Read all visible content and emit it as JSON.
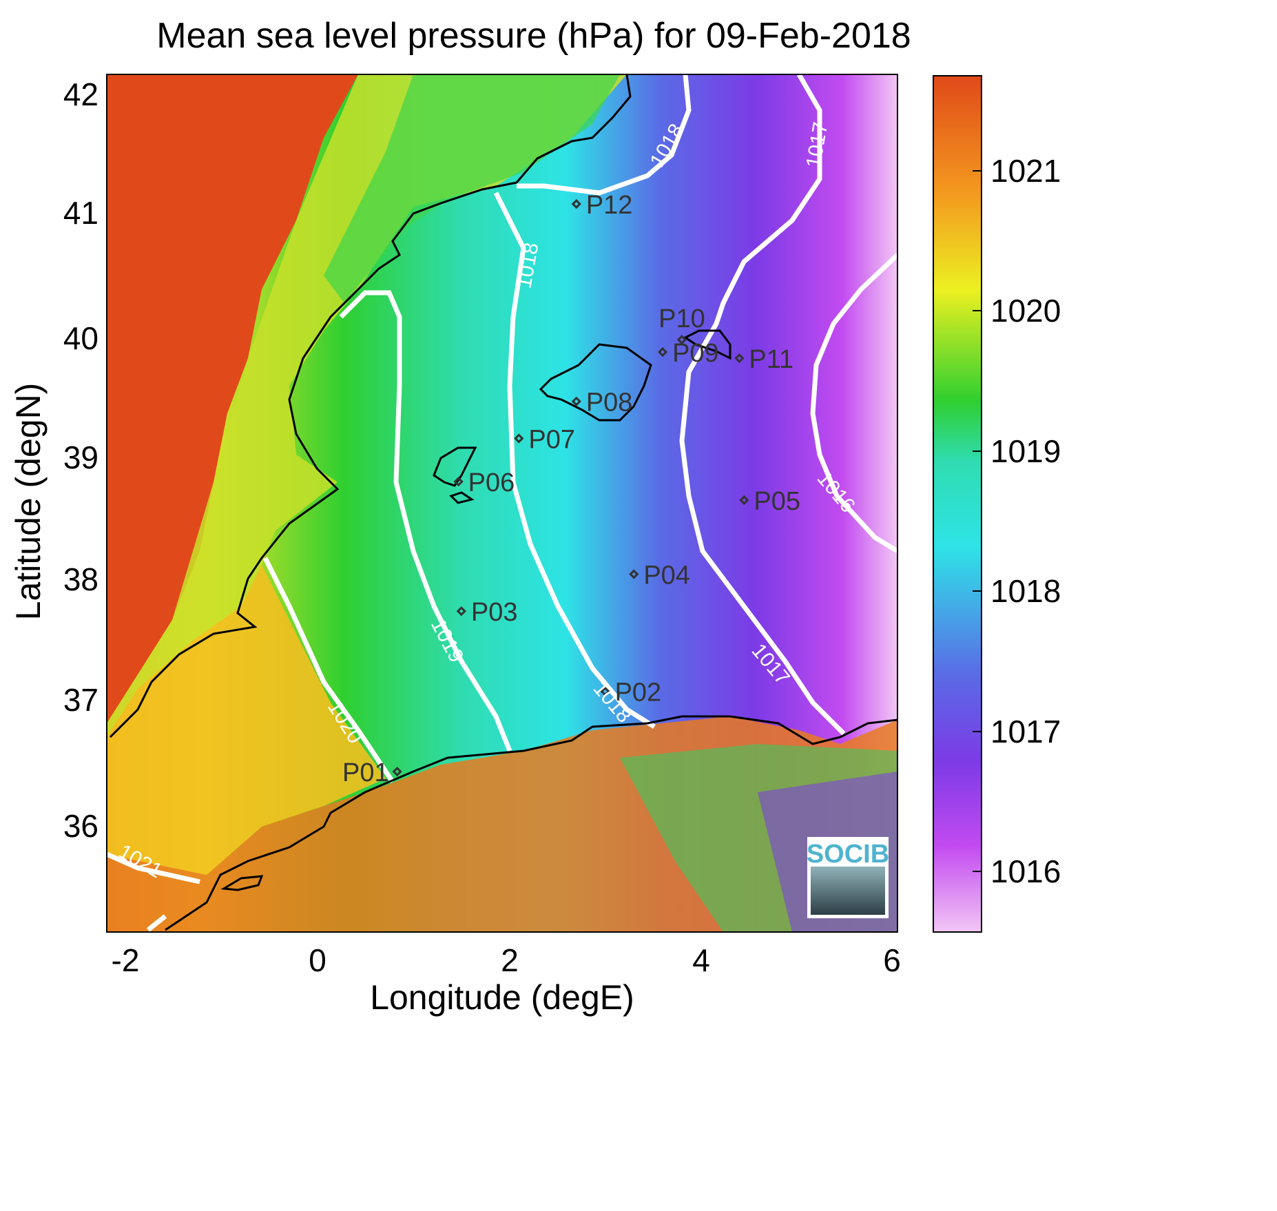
{
  "title": "Mean sea level pressure (hPa) for 09-Feb-2018",
  "xlabel": "Longitude (degE)",
  "ylabel": "Latitude (degN)",
  "xticks": [
    "-2",
    "0",
    "2",
    "4",
    "6"
  ],
  "yticks": [
    "42",
    "41",
    "40",
    "39",
    "38",
    "37",
    "36"
  ],
  "colorbar_ticks": [
    "1021",
    "1020",
    "1019",
    "1018",
    "1017",
    "1016"
  ],
  "contour_labels": [
    "1018",
    "1017",
    "1018",
    "1019",
    "1020",
    "1018",
    "1017",
    "1016",
    "1021"
  ],
  "logo": "SOCIB",
  "colors": {
    "high": "#e04a1a",
    "orange": "#f39b1f",
    "yellow": "#ecf021",
    "green": "#2fcf30",
    "cyan": "#2ee3e6",
    "blue": "#5a6be6",
    "purple": "#7c3be6",
    "magenta": "#c24bf0",
    "lowest": "#f2c6f5",
    "coast": "#000000",
    "contour": "#ffffff"
  },
  "chart_data": {
    "type": "heatmap",
    "variable": "Mean sea level pressure",
    "units": "hPa",
    "date": "09-Feb-2018",
    "xlim": [
      -2.2,
      6.05
    ],
    "ylim": [
      35.2,
      42.15
    ],
    "clim": [
      1015.6,
      1021.6
    ],
    "contour_levels": [
      1016,
      1017,
      1018,
      1019,
      1020,
      1021
    ],
    "stations": [
      {
        "name": "P01",
        "lon": 0.83,
        "lat": 36.5
      },
      {
        "name": "P02",
        "lon": 3.0,
        "lat": 37.15
      },
      {
        "name": "P03",
        "lon": 1.5,
        "lat": 37.8
      },
      {
        "name": "P04",
        "lon": 3.3,
        "lat": 38.1
      },
      {
        "name": "P05",
        "lon": 4.45,
        "lat": 38.7
      },
      {
        "name": "P06",
        "lon": 1.47,
        "lat": 38.85
      },
      {
        "name": "P07",
        "lon": 2.1,
        "lat": 39.2
      },
      {
        "name": "P08",
        "lon": 2.7,
        "lat": 39.5
      },
      {
        "name": "P09",
        "lon": 3.6,
        "lat": 39.9
      },
      {
        "name": "P10",
        "lon": 3.8,
        "lat": 40.0
      },
      {
        "name": "P11",
        "lon": 4.4,
        "lat": 39.85
      },
      {
        "name": "P12",
        "lon": 2.7,
        "lat": 41.1
      }
    ]
  }
}
